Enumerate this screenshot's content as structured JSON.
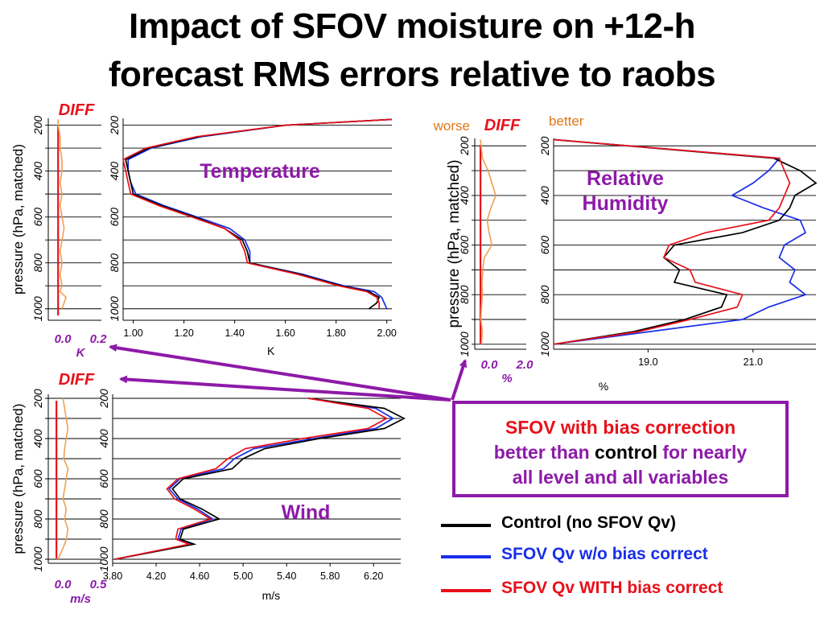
{
  "title_line1": "Impact of SFOV moisture on +12-h",
  "title_line2": "forecast RMS errors relative to raobs",
  "colors": {
    "control": "#000000",
    "no_bias": "#1a2ee8",
    "with_bias": "#e8101a",
    "diff": "#f0a050",
    "diff_label": "#e8101a",
    "purple": "#8d1aa8",
    "orange_text": "#e07818"
  },
  "callout": {
    "line1": "SFOV with bias correction",
    "line2a": "better than ",
    "line2b": "control",
    "line2c": " for nearly",
    "line3": "all level and all variables"
  },
  "legend": [
    {
      "label": "Control  (no SFOV Qv)",
      "color_key": "control"
    },
    {
      "label": "SFOV Qv  w/o bias correct",
      "color_key": "no_bias"
    },
    {
      "label": "SFOV Qv WITH bias correct",
      "color_key": "with_bias"
    }
  ],
  "chart_data": [
    {
      "id": "temperature",
      "type": "line",
      "panel_label": "Temperature",
      "diff_label": "DIFF",
      "xlabel": "K",
      "ylabel": "pressure (hPa, matched)",
      "diff_ticks": [
        "0.0",
        "0.2"
      ],
      "diff_unit": "K",
      "xlim": [
        0.96,
        2.02
      ],
      "ylim": [
        1050,
        170
      ],
      "xticks": [
        "1.00",
        "1.20",
        "1.40",
        "1.60",
        "1.80",
        "2.00"
      ],
      "yticks": [
        "200",
        "400",
        "600",
        "800",
        "1000"
      ],
      "levels": [
        1000,
        975,
        950,
        925,
        900,
        850,
        800,
        750,
        700,
        650,
        600,
        550,
        500,
        450,
        400,
        350,
        300,
        250,
        200,
        175
      ],
      "series": [
        {
          "key": "control",
          "values": [
            1.93,
            1.96,
            1.97,
            1.93,
            1.82,
            1.66,
            1.46,
            1.45,
            1.43,
            1.36,
            1.24,
            1.11,
            1.0,
            0.99,
            0.98,
            0.97,
            1.06,
            1.26,
            1.6,
            2.02
          ]
        },
        {
          "key": "no_bias",
          "values": [
            2.0,
            1.99,
            1.98,
            1.95,
            1.83,
            1.67,
            1.46,
            1.46,
            1.44,
            1.38,
            1.25,
            1.12,
            1.01,
            0.99,
            0.98,
            0.98,
            1.07,
            1.27,
            1.6,
            2.02
          ]
        },
        {
          "key": "with_bias",
          "values": [
            1.97,
            1.97,
            1.96,
            1.92,
            1.81,
            1.65,
            1.45,
            1.44,
            1.42,
            1.36,
            1.23,
            1.1,
            0.99,
            0.98,
            0.97,
            0.96,
            1.05,
            1.25,
            1.6,
            2.02
          ]
        }
      ],
      "diff_xlim": [
        -0.05,
        0.22
      ],
      "diff_values": [
        0.02,
        0.03,
        0.04,
        0.01,
        0.02,
        0.01,
        0.02,
        0.01,
        0.02,
        0.03,
        0.02,
        0.01,
        0.02,
        0.01,
        0.02,
        0.02,
        0.01,
        0.01,
        0.0,
        0.0
      ]
    },
    {
      "id": "wind",
      "type": "line",
      "panel_label": "Wind",
      "diff_label": "DIFF",
      "xlabel": "m/s",
      "ylabel": "pressure (hPa, matched)",
      "diff_ticks": [
        "0.0",
        "0.5"
      ],
      "diff_unit": "m/s",
      "xlim": [
        3.8,
        6.45
      ],
      "ylim": [
        1020,
        180
      ],
      "xticks": [
        "3.80",
        "4.20",
        "4.60",
        "5.00",
        "5.40",
        "5.80",
        "6.20"
      ],
      "yticks": [
        "200",
        "400",
        "600",
        "800",
        "1000"
      ],
      "levels": [
        1000,
        925,
        900,
        850,
        800,
        750,
        700,
        650,
        600,
        550,
        500,
        450,
        400,
        350,
        300,
        250,
        200
      ],
      "series": [
        {
          "key": "control",
          "values": [
            3.82,
            4.55,
            4.42,
            4.45,
            4.78,
            4.62,
            4.42,
            4.35,
            4.45,
            4.9,
            5.0,
            5.2,
            5.7,
            6.3,
            6.48,
            6.3,
            5.6
          ]
        },
        {
          "key": "no_bias",
          "values": [
            3.82,
            4.52,
            4.4,
            4.43,
            4.72,
            4.58,
            4.4,
            4.32,
            4.42,
            4.82,
            4.92,
            5.1,
            5.65,
            6.22,
            6.38,
            6.22,
            5.6
          ]
        },
        {
          "key": "with_bias",
          "values": [
            3.82,
            4.5,
            4.38,
            4.4,
            4.7,
            4.55,
            4.37,
            4.3,
            4.4,
            4.75,
            4.86,
            5.02,
            5.55,
            6.15,
            6.32,
            6.15,
            5.6
          ]
        }
      ],
      "diff_xlim": [
        -0.1,
        0.55
      ],
      "diff_values": [
        0.02,
        0.1,
        0.12,
        0.14,
        0.1,
        0.12,
        0.08,
        0.1,
        0.12,
        0.14,
        0.09,
        0.1,
        0.12,
        0.14,
        0.12,
        0.1,
        0.08
      ]
    },
    {
      "id": "humidity",
      "type": "line",
      "panel_label_line1": "Relative",
      "panel_label_line2": "Humidity",
      "diff_label": "DIFF",
      "worse_label": "worse",
      "better_label": "better",
      "xlabel": "%",
      "ylabel": "pressure (hPa, matched)",
      "diff_ticks": [
        "0.0",
        "2.0"
      ],
      "diff_unit": "%",
      "xlim": [
        17.2,
        22.2
      ],
      "ylim": [
        1020,
        170
      ],
      "xticks": [
        "19.0",
        "21.0"
      ],
      "yticks": [
        "200",
        "400",
        "600",
        "800",
        "1000"
      ],
      "levels": [
        1000,
        950,
        900,
        850,
        800,
        750,
        700,
        650,
        600,
        550,
        500,
        450,
        400,
        350,
        300,
        250,
        175
      ],
      "series": [
        {
          "key": "control",
          "values": [
            17.2,
            18.7,
            19.7,
            20.4,
            20.5,
            19.5,
            19.6,
            19.3,
            19.5,
            20.8,
            21.5,
            21.7,
            21.8,
            22.2,
            21.9,
            21.4,
            17.2
          ]
        },
        {
          "key": "no_bias",
          "values": [
            17.2,
            19.0,
            20.8,
            21.3,
            22.0,
            21.7,
            21.8,
            21.5,
            21.6,
            22.0,
            21.9,
            21.2,
            20.6,
            21.0,
            21.3,
            21.5,
            17.2
          ]
        },
        {
          "key": "with_bias",
          "values": [
            17.2,
            18.8,
            19.8,
            20.7,
            20.8,
            19.9,
            19.8,
            19.3,
            19.4,
            20.1,
            21.3,
            21.5,
            21.6,
            21.7,
            21.6,
            21.5,
            17.2
          ]
        }
      ],
      "diff_xlim": [
        -0.3,
        2.4
      ],
      "diff_values": [
        0.05,
        0.1,
        0.02,
        0.05,
        0.1,
        0.08,
        0.12,
        0.2,
        0.6,
        0.45,
        0.35,
        0.55,
        0.8,
        0.6,
        0.4,
        0.1,
        0.0
      ]
    }
  ]
}
